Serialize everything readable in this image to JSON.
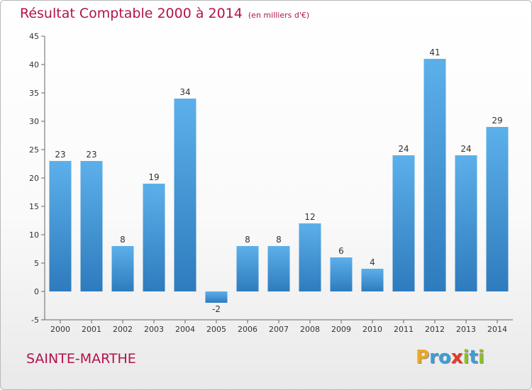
{
  "title": "Résultat Comptable 2000 à 2014",
  "subtitle": "(en milliers d'€)",
  "place": "SAINTE-MARTHE",
  "logo": {
    "letters": [
      "P",
      "r",
      "o",
      "x",
      "i",
      "t",
      "i"
    ],
    "colors": [
      "#f0a81e",
      "#3a9fd8",
      "#3a9fd8",
      "#e23b2a",
      "#8fbf2a",
      "#3a9fd8",
      "#8fbf2a"
    ]
  },
  "colors": {
    "bar_top": "#5cb0ea",
    "bar_bottom": "#2e7bbd",
    "text_accent": "#b3124e"
  },
  "chart_data": {
    "type": "bar",
    "categories": [
      "2000",
      "2001",
      "2002",
      "2003",
      "2004",
      "2005",
      "2006",
      "2007",
      "2008",
      "2009",
      "2010",
      "2011",
      "2012",
      "2013",
      "2014"
    ],
    "values": [
      23,
      23,
      8,
      19,
      34,
      -2,
      8,
      8,
      12,
      6,
      4,
      24,
      41,
      24,
      29
    ],
    "value_labels": [
      "23",
      "23",
      "8",
      "19",
      "34",
      "-2",
      "8",
      "8",
      "12",
      "6",
      "4",
      "24",
      "41",
      "24",
      "29"
    ],
    "y_ticks": [
      "-5",
      "0",
      "5",
      "10",
      "15",
      "20",
      "25",
      "30",
      "35",
      "40",
      "45"
    ],
    "ylim": [
      -5,
      45
    ],
    "grid": false,
    "legend": "none"
  }
}
